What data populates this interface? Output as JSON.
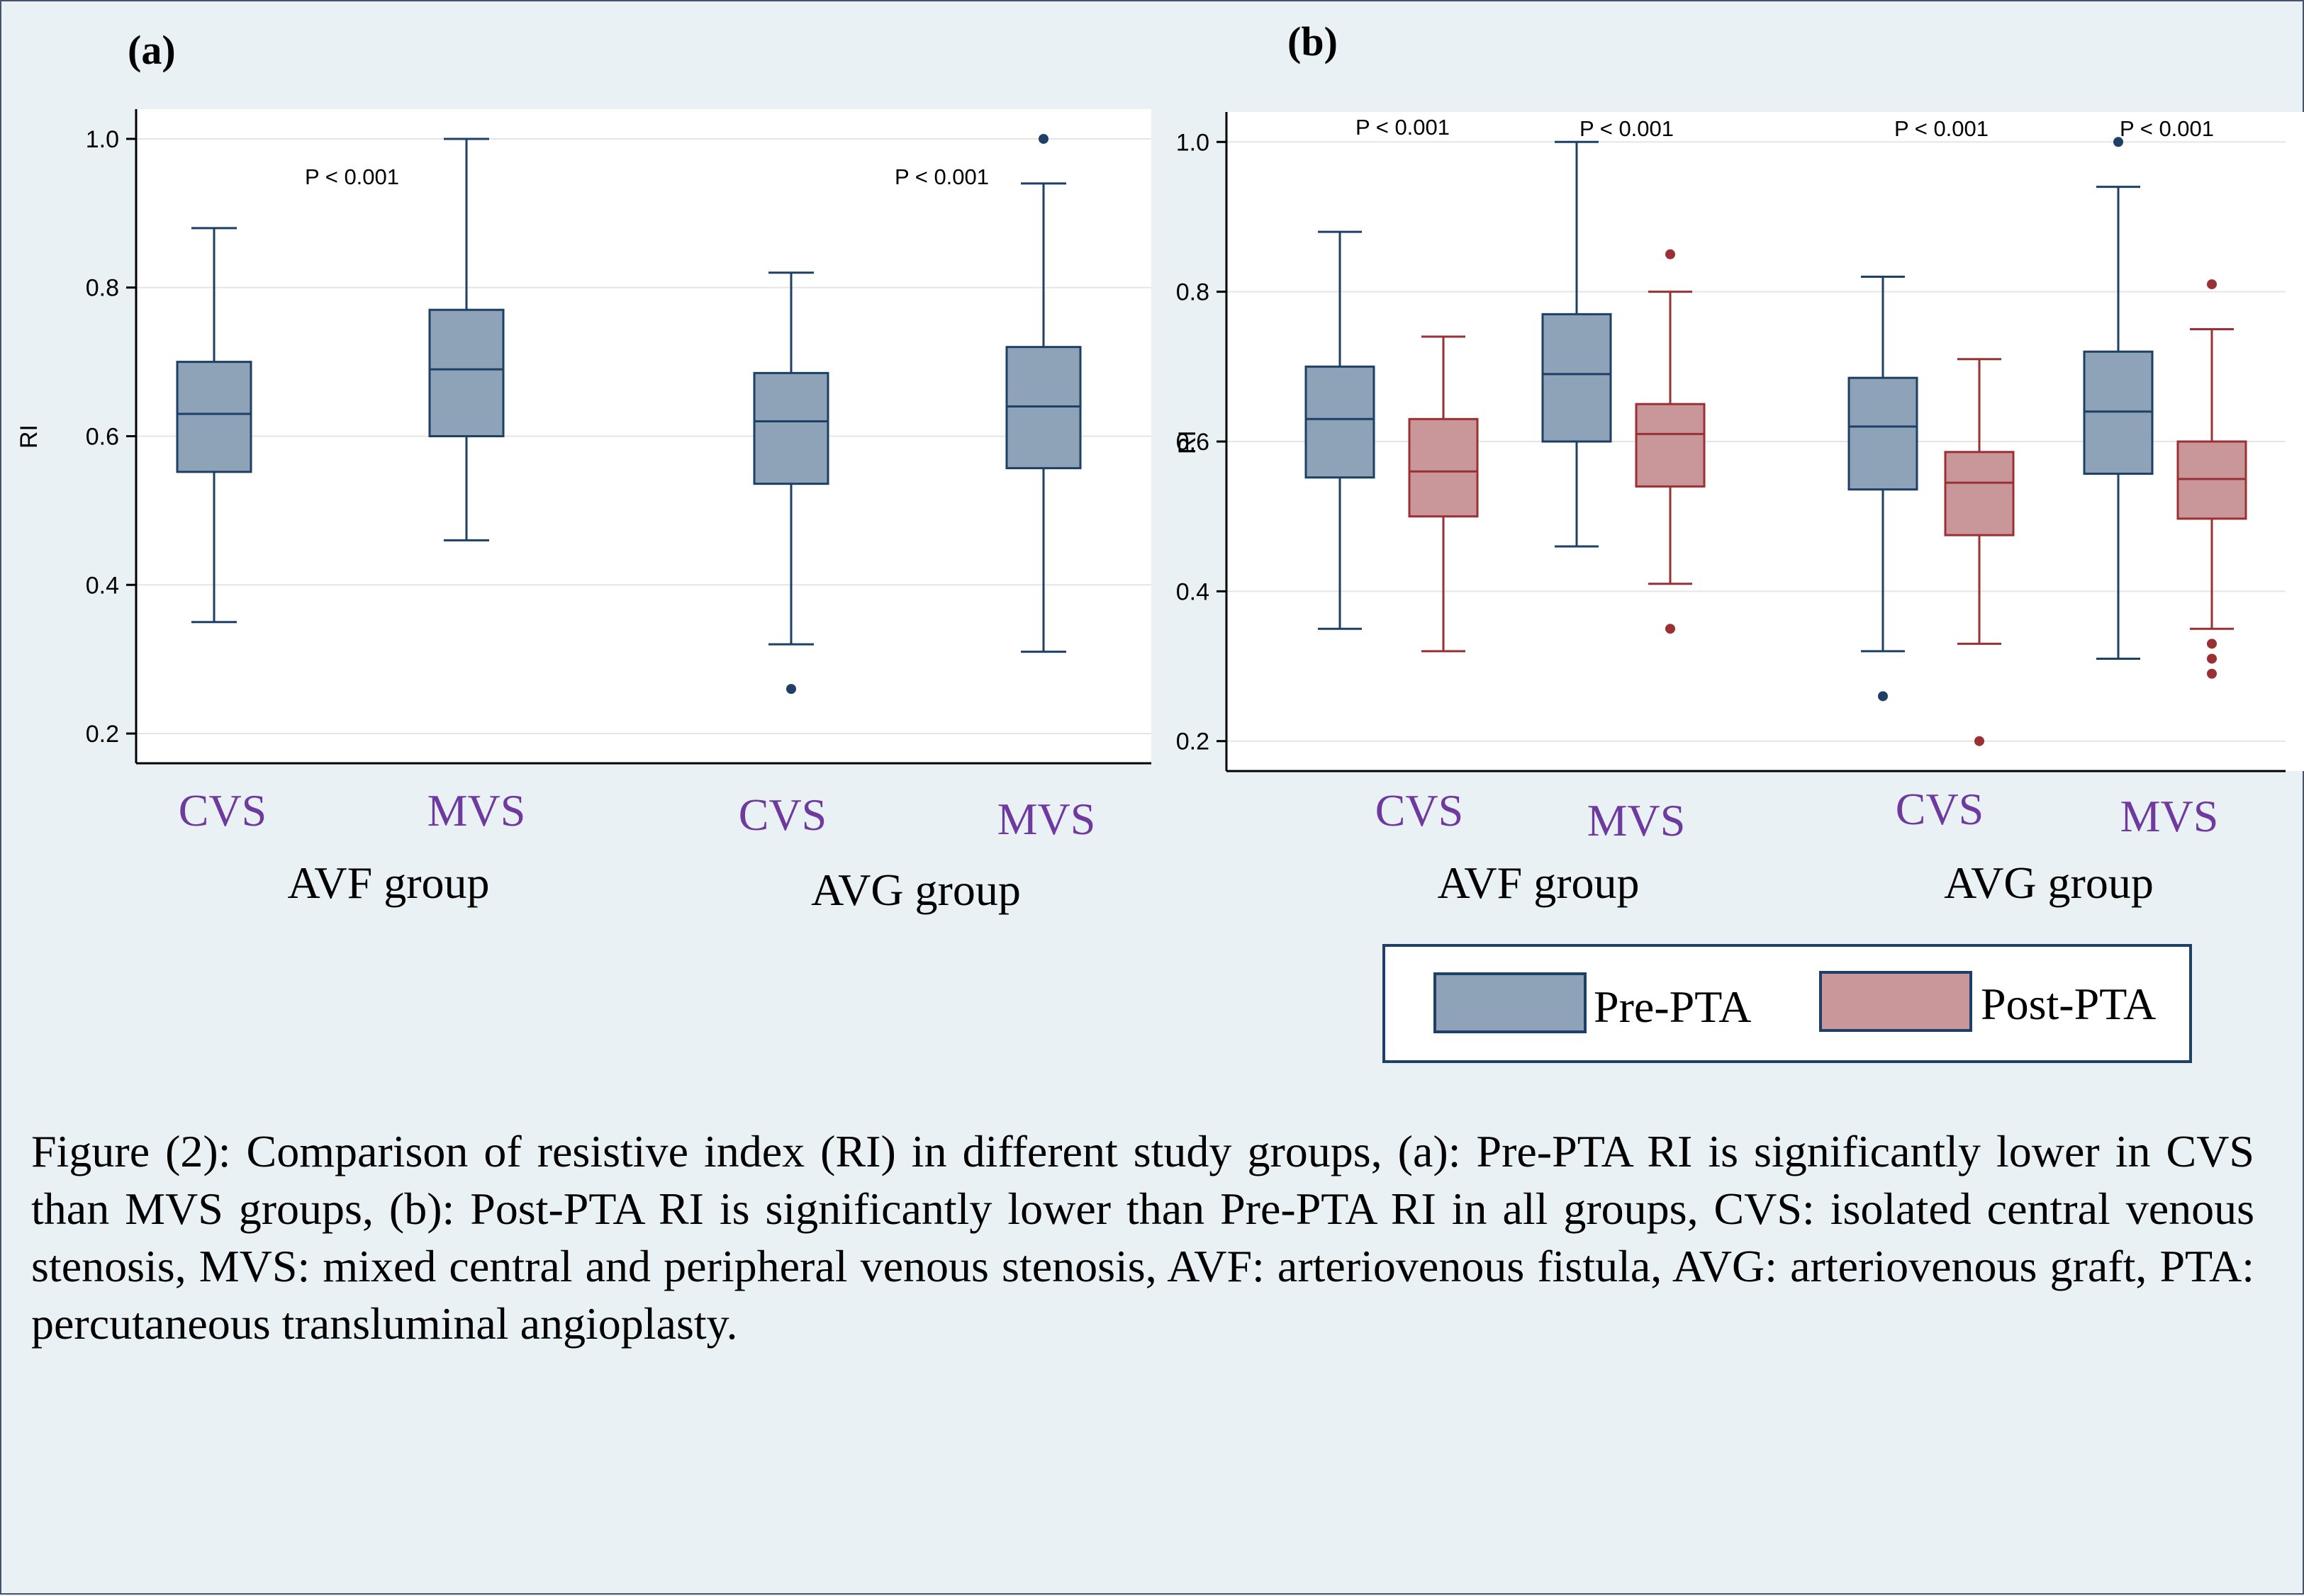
{
  "chart_data": [
    {
      "type": "box",
      "panel_label": "(a)",
      "ylabel": "RI",
      "yticks": [
        0.2,
        0.4,
        0.6,
        0.8,
        1.0
      ],
      "ylim": [
        0.16,
        1.04
      ],
      "grid": true,
      "colors": {
        "pre": "#8fa3b8",
        "post": "#c9979a",
        "stroke_pre": "#1e3f66",
        "stroke_post": "#9b3034",
        "category_text": "#6f3aa0"
      },
      "groups": [
        {
          "label": "AVF group",
          "subgroups": [
            "CVS",
            "MVS"
          ]
        },
        {
          "label": "AVG group",
          "subgroups": [
            "CVS",
            "MVS"
          ]
        }
      ],
      "boxes": [
        {
          "group": 0,
          "subgroup": "CVS",
          "series": "pre",
          "whisker_low": 0.35,
          "q1": 0.552,
          "median": 0.63,
          "q3": 0.7,
          "whisker_high": 0.88,
          "outliers": []
        },
        {
          "group": 0,
          "subgroup": "MVS",
          "series": "pre",
          "whisker_low": 0.46,
          "q1": 0.6,
          "median": 0.69,
          "q3": 0.77,
          "whisker_high": 1.0,
          "outliers": []
        },
        {
          "group": 1,
          "subgroup": "CVS",
          "series": "pre",
          "whisker_low": 0.32,
          "q1": 0.536,
          "median": 0.62,
          "q3": 0.685,
          "whisker_high": 0.82,
          "outliers": [
            0.26
          ]
        },
        {
          "group": 1,
          "subgroup": "MVS",
          "series": "pre",
          "whisker_low": 0.31,
          "q1": 0.557,
          "median": 0.64,
          "q3": 0.72,
          "whisker_high": 0.94,
          "outliers": [
            1.0
          ]
        }
      ],
      "annotations": [
        "P < 0.001",
        "P < 0.001"
      ]
    },
    {
      "type": "box",
      "panel_label": "(b)",
      "ylabel": "RI",
      "yticks": [
        0.2,
        0.4,
        0.6,
        0.8,
        1.0
      ],
      "ylim": [
        0.16,
        1.04
      ],
      "grid": true,
      "legend": {
        "placement": "bottom-right",
        "entries": [
          "Pre-PTA",
          "Post-PTA"
        ]
      },
      "groups": [
        {
          "label": "AVF group",
          "subgroups": [
            "CVS",
            "MVS"
          ]
        },
        {
          "label": "AVG group",
          "subgroups": [
            "CVS",
            "MVS"
          ]
        }
      ],
      "boxes": [
        {
          "group": 0,
          "subgroup": "CVS",
          "series": "pre",
          "whisker_low": 0.35,
          "q1": 0.552,
          "median": 0.63,
          "q3": 0.7,
          "whisker_high": 0.88,
          "outliers": []
        },
        {
          "group": 0,
          "subgroup": "CVS",
          "series": "post",
          "whisker_low": 0.32,
          "q1": 0.5,
          "median": 0.56,
          "q3": 0.63,
          "whisker_high": 0.74,
          "outliers": []
        },
        {
          "group": 0,
          "subgroup": "MVS",
          "series": "pre",
          "whisker_low": 0.46,
          "q1": 0.6,
          "median": 0.69,
          "q3": 0.77,
          "whisker_high": 1.0,
          "outliers": []
        },
        {
          "group": 0,
          "subgroup": "MVS",
          "series": "post",
          "whisker_low": 0.41,
          "q1": 0.54,
          "median": 0.61,
          "q3": 0.65,
          "whisker_high": 0.8,
          "outliers": [
            0.85,
            0.35
          ]
        },
        {
          "group": 1,
          "subgroup": "CVS",
          "series": "pre",
          "whisker_low": 0.32,
          "q1": 0.536,
          "median": 0.62,
          "q3": 0.685,
          "whisker_high": 0.82,
          "outliers": [
            0.26
          ]
        },
        {
          "group": 1,
          "subgroup": "CVS",
          "series": "post",
          "whisker_low": 0.33,
          "q1": 0.475,
          "median": 0.545,
          "q3": 0.586,
          "whisker_high": 0.71,
          "outliers": [
            0.2
          ]
        },
        {
          "group": 1,
          "subgroup": "MVS",
          "series": "pre",
          "whisker_low": 0.31,
          "q1": 0.557,
          "median": 0.64,
          "q3": 0.72,
          "whisker_high": 0.94,
          "outliers": [
            1.0
          ]
        },
        {
          "group": 1,
          "subgroup": "MVS",
          "series": "post",
          "whisker_low": 0.35,
          "q1": 0.497,
          "median": 0.55,
          "q3": 0.6,
          "whisker_high": 0.75,
          "outliers": [
            0.81,
            0.33,
            0.31,
            0.29
          ]
        }
      ],
      "annotations": [
        "P < 0.001",
        "P < 0.001",
        "P < 0.001",
        "P < 0.001"
      ]
    }
  ],
  "caption": "Figure (2): Comparison of resistive index (RI) in different study groups, (a): Pre-PTA RI is significantly lower in CVS than MVS groups, (b): Post-PTA RI is significantly lower than Pre-PTA RI in all groups, CVS: isolated central venous stenosis, MVS: mixed central and peripheral venous stenosis, AVF: arteriovenous fistula, AVG: arteriovenous graft, PTA: percutaneous transluminal angioplasty."
}
